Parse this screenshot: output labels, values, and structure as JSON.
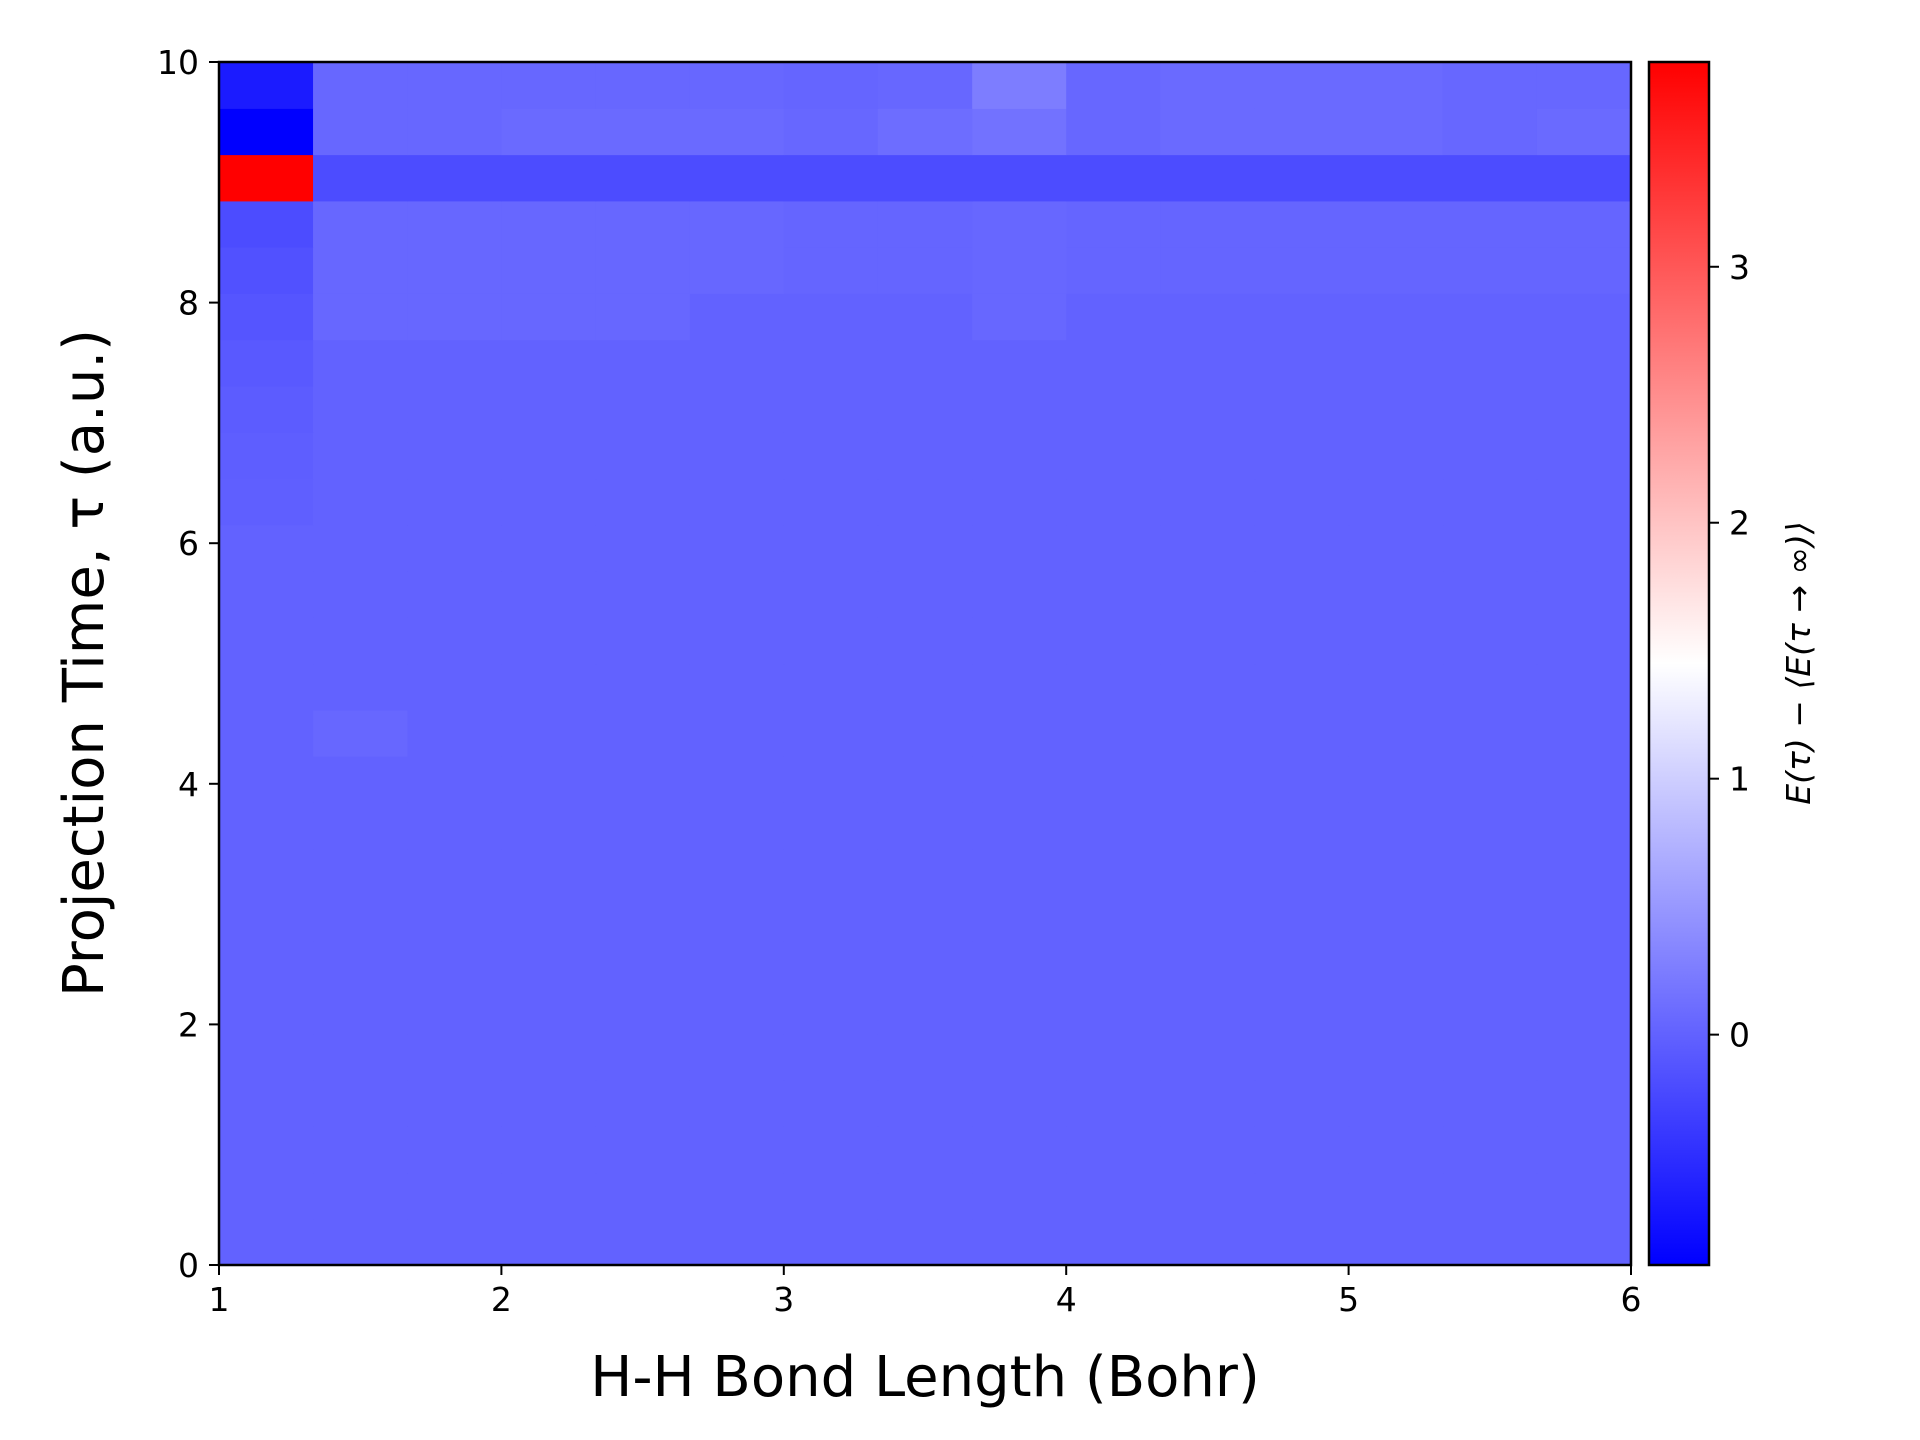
{
  "chart_data": {
    "type": "heatmap",
    "title": "",
    "xlabel": "H-H Bond Length (Bohr)",
    "ylabel": "Projection Time, τ (a.u.)",
    "colorbar_label": "E(τ) − ⟨E(τ → ∞)⟩",
    "colormap": "bwr",
    "xlim": [
      1,
      6
    ],
    "ylim": [
      0,
      10
    ],
    "vmin": -0.9,
    "vmax": 3.8,
    "x_ticks": [
      "1",
      "2",
      "3",
      "4",
      "5",
      "6"
    ],
    "y_ticks": [
      "0",
      "2",
      "4",
      "6",
      "8",
      "10"
    ],
    "colorbar_ticks": [
      "0",
      "1",
      "2",
      "3"
    ],
    "x_edges": [
      1.0,
      1.333,
      1.667,
      2.0,
      2.333,
      2.667,
      3.0,
      3.333,
      3.667,
      4.0,
      4.333,
      4.667,
      5.0,
      5.333,
      5.667,
      6.0
    ],
    "y_edges": [
      0.0,
      0.385,
      0.769,
      1.154,
      1.538,
      1.923,
      2.308,
      2.692,
      3.077,
      3.462,
      3.846,
      4.231,
      4.615,
      5.0,
      5.385,
      5.769,
      6.154,
      6.538,
      6.923,
      7.308,
      7.692,
      8.077,
      8.462,
      8.846,
      9.231,
      9.615,
      10.0
    ],
    "values": [
      [
        0.0,
        0.0,
        0.0,
        0.0,
        0.0,
        0.0,
        0.0,
        0.0,
        0.0,
        0.0,
        0.0,
        0.0,
        0.0,
        0.0,
        0.0
      ],
      [
        0.0,
        0.0,
        0.0,
        0.0,
        0.0,
        0.0,
        0.0,
        0.0,
        0.0,
        0.0,
        0.0,
        0.0,
        0.0,
        0.0,
        0.0
      ],
      [
        0.0,
        0.0,
        0.0,
        0.0,
        0.0,
        0.0,
        0.0,
        0.0,
        0.0,
        0.0,
        0.0,
        0.0,
        0.0,
        0.0,
        0.0
      ],
      [
        0.0,
        0.0,
        0.0,
        0.0,
        0.0,
        0.0,
        0.0,
        0.0,
        0.0,
        0.0,
        0.0,
        0.0,
        0.0,
        0.0,
        0.0
      ],
      [
        0.0,
        0.0,
        0.0,
        0.0,
        0.0,
        0.0,
        0.0,
        0.0,
        0.0,
        0.0,
        0.0,
        0.0,
        0.0,
        0.0,
        0.0
      ],
      [
        0.0,
        0.0,
        0.0,
        0.0,
        0.0,
        0.0,
        0.0,
        0.0,
        0.0,
        0.0,
        0.0,
        0.0,
        0.0,
        0.0,
        0.0
      ],
      [
        0.0,
        0.0,
        0.0,
        0.0,
        0.0,
        0.0,
        0.0,
        0.0,
        0.0,
        0.0,
        0.0,
        0.0,
        0.0,
        0.0,
        0.0
      ],
      [
        0.0,
        0.0,
        0.0,
        0.0,
        0.0,
        0.0,
        0.0,
        0.0,
        0.0,
        0.0,
        0.0,
        0.0,
        0.0,
        0.0,
        0.0
      ],
      [
        0.0,
        0.0,
        0.0,
        0.0,
        0.0,
        0.0,
        0.0,
        0.0,
        0.0,
        0.0,
        0.0,
        0.0,
        0.0,
        0.0,
        0.0
      ],
      [
        0.0,
        0.0,
        0.0,
        0.0,
        0.0,
        0.0,
        0.0,
        0.0,
        0.0,
        0.0,
        0.0,
        0.0,
        0.0,
        0.0,
        0.0
      ],
      [
        0.0,
        0.0,
        0.0,
        0.0,
        0.0,
        0.0,
        0.0,
        0.0,
        0.0,
        0.0,
        0.0,
        0.0,
        0.0,
        0.0,
        0.0
      ],
      [
        0.0,
        0.05,
        0.0,
        0.0,
        0.0,
        0.0,
        0.0,
        0.0,
        0.0,
        0.0,
        0.0,
        0.0,
        0.0,
        0.0,
        0.0
      ],
      [
        0.0,
        0.0,
        0.0,
        0.0,
        0.0,
        0.0,
        0.0,
        0.0,
        0.0,
        0.0,
        0.0,
        0.0,
        0.0,
        0.0,
        0.0
      ],
      [
        0.0,
        0.0,
        0.0,
        0.0,
        0.0,
        0.0,
        0.0,
        0.0,
        0.0,
        0.0,
        0.0,
        0.0,
        0.0,
        0.0,
        0.0
      ],
      [
        0.0,
        0.0,
        0.0,
        0.0,
        0.0,
        0.0,
        0.0,
        0.0,
        0.0,
        0.0,
        0.0,
        0.0,
        0.0,
        0.0,
        0.0
      ],
      [
        0.0,
        0.0,
        0.0,
        0.0,
        0.0,
        0.0,
        0.0,
        0.0,
        0.0,
        0.0,
        0.0,
        0.0,
        0.0,
        0.0,
        0.0
      ],
      [
        -0.02,
        0.0,
        0.0,
        0.0,
        0.0,
        0.0,
        0.0,
        0.0,
        0.0,
        0.0,
        0.0,
        0.0,
        0.0,
        0.0,
        0.0
      ],
      [
        -0.03,
        0.0,
        0.0,
        0.0,
        0.0,
        0.0,
        0.0,
        0.0,
        0.0,
        0.0,
        0.0,
        0.0,
        0.0,
        0.0,
        0.0
      ],
      [
        -0.05,
        0.0,
        0.0,
        0.0,
        0.0,
        0.0,
        0.0,
        0.0,
        0.0,
        0.0,
        0.0,
        0.0,
        0.0,
        0.0,
        0.0
      ],
      [
        -0.08,
        0.0,
        0.0,
        0.0,
        0.0,
        0.0,
        0.0,
        0.0,
        0.0,
        0.0,
        0.0,
        0.0,
        0.0,
        0.0,
        0.0
      ],
      [
        -0.12,
        0.05,
        0.05,
        0.05,
        0.05,
        0.0,
        0.0,
        0.0,
        0.05,
        0.0,
        0.0,
        0.0,
        0.0,
        0.0,
        0.0
      ],
      [
        -0.15,
        0.05,
        0.05,
        0.05,
        0.05,
        0.05,
        0.03,
        0.03,
        0.05,
        0.03,
        0.03,
        0.03,
        0.03,
        0.03,
        0.03
      ],
      [
        -0.2,
        0.05,
        0.05,
        0.05,
        0.05,
        0.05,
        0.03,
        0.03,
        0.05,
        0.03,
        0.03,
        0.03,
        0.03,
        0.03,
        0.03
      ],
      [
        3.8,
        -0.2,
        -0.2,
        -0.2,
        -0.2,
        -0.2,
        -0.2,
        -0.2,
        -0.2,
        -0.2,
        -0.2,
        -0.2,
        -0.2,
        -0.2,
        -0.2
      ],
      [
        -0.9,
        0.05,
        0.05,
        0.08,
        0.08,
        0.08,
        0.05,
        0.1,
        0.15,
        0.05,
        0.08,
        0.08,
        0.08,
        0.05,
        0.08
      ],
      [
        -0.65,
        0.05,
        0.05,
        0.05,
        0.05,
        0.05,
        0.03,
        0.05,
        0.25,
        0.05,
        0.08,
        0.08,
        0.08,
        0.05,
        0.05
      ]
    ]
  },
  "heatmap_colors": {
    "low": "#0000ff",
    "mid": "#ffffff",
    "high": "#ff0000"
  }
}
